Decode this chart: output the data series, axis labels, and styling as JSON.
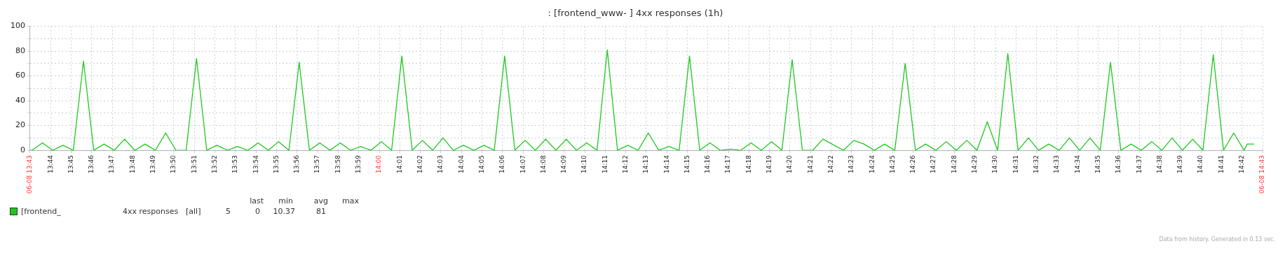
{
  "chart_data": {
    "type": "line",
    "title": ": [frontend_www- ] 4xx responses (1h)",
    "series": [
      {
        "name": "[frontend_",
        "color": "#1ec81e",
        "x": [
          13.7167,
          13.7183,
          13.7267,
          13.735,
          13.7433,
          13.7517,
          13.76,
          13.7683,
          13.7767,
          13.785,
          13.7933,
          13.8017,
          13.81,
          13.8183,
          13.8267,
          13.835,
          13.8433,
          13.8517,
          13.86,
          13.8683,
          13.8767,
          13.885,
          13.8933,
          13.9017,
          13.91,
          13.9183,
          13.9267,
          13.935,
          13.9433,
          13.9517,
          13.96,
          13.9683,
          13.9767,
          13.985,
          13.9933,
          14.0017,
          14.01,
          14.0183,
          14.0267,
          14.035,
          14.0433,
          14.0517,
          14.06,
          14.0683,
          14.0767,
          14.085,
          14.0933,
          14.1017,
          14.11,
          14.1183,
          14.1267,
          14.135,
          14.1433,
          14.1517,
          14.16,
          14.1683,
          14.1767,
          14.185,
          14.1933,
          14.2017,
          14.21,
          14.2183,
          14.2267,
          14.235,
          14.2433,
          14.2517,
          14.26,
          14.2683,
          14.2767,
          14.285,
          14.2933,
          14.3017,
          14.31,
          14.3183,
          14.3267,
          14.335,
          14.3433,
          14.3517,
          14.36,
          14.3767,
          14.385,
          14.3933,
          14.4017,
          14.41,
          14.4183,
          14.4267,
          14.435,
          14.4433,
          14.4517,
          14.46,
          14.4683,
          14.4767,
          14.485,
          14.4933,
          14.5017,
          14.51,
          14.5183,
          14.5267,
          14.535,
          14.5433,
          14.5517,
          14.56,
          14.5683,
          14.5767,
          14.585,
          14.5933,
          14.6017,
          14.61,
          14.6183,
          14.6267,
          14.635,
          14.6433,
          14.6517,
          14.66,
          14.6683,
          14.6767,
          14.685,
          14.6933,
          14.7017,
          14.7042,
          14.71
        ],
        "values": [
          0,
          0,
          6,
          0,
          4,
          0,
          72,
          0,
          5,
          0,
          9,
          0,
          5,
          0,
          14,
          0,
          0,
          74,
          0,
          4,
          0,
          3,
          0,
          6,
          0,
          7,
          0,
          71,
          0,
          6,
          0,
          6,
          0,
          3,
          0,
          7,
          0,
          76,
          0,
          8,
          0,
          10,
          0,
          4,
          0,
          4,
          0,
          76,
          0,
          8,
          0,
          9,
          0,
          9,
          0,
          6,
          0,
          81,
          0,
          4,
          0,
          14,
          0,
          3,
          0,
          76,
          0,
          6,
          0,
          1,
          0,
          6,
          0,
          7,
          0,
          73,
          0,
          0,
          9,
          0,
          8,
          5,
          0,
          5,
          0,
          70,
          0,
          5,
          0,
          7,
          0,
          8,
          0,
          23,
          0,
          78,
          0,
          10,
          0,
          5,
          0,
          10,
          0,
          10,
          0,
          71,
          0,
          5,
          0,
          7,
          0,
          10,
          0,
          9,
          0,
          77,
          0,
          14,
          0,
          5,
          5
        ]
      }
    ],
    "xlim": [
      13.7167,
      14.7167
    ],
    "xticks": [
      {
        "value": 13.7167,
        "label": "06-08 13:43"
      },
      {
        "value": 13.7333,
        "label": "13:44"
      },
      {
        "value": 13.75,
        "label": "13:45"
      },
      {
        "value": 13.7667,
        "label": "13:46"
      },
      {
        "value": 13.7833,
        "label": "13:47"
      },
      {
        "value": 13.8,
        "label": "13:48"
      },
      {
        "value": 13.8167,
        "label": "13:49"
      },
      {
        "value": 13.8333,
        "label": "13:50"
      },
      {
        "value": 13.85,
        "label": "13:51"
      },
      {
        "value": 13.8667,
        "label": "13:52"
      },
      {
        "value": 13.8833,
        "label": "13:53"
      },
      {
        "value": 13.9,
        "label": "13:54"
      },
      {
        "value": 13.9167,
        "label": "13:55"
      },
      {
        "value": 13.9333,
        "label": "13:56"
      },
      {
        "value": 13.95,
        "label": "13:57"
      },
      {
        "value": 13.9667,
        "label": "13:58"
      },
      {
        "value": 13.9833,
        "label": "13:59"
      },
      {
        "value": 14,
        "label": "14:00"
      },
      {
        "value": 14.0167,
        "label": "14:01"
      },
      {
        "value": 14.0333,
        "label": "14:02"
      },
      {
        "value": 14.05,
        "label": "14:03"
      },
      {
        "value": 14.0667,
        "label": "14:04"
      },
      {
        "value": 14.0833,
        "label": "14:05"
      },
      {
        "value": 14.1,
        "label": "14:06"
      },
      {
        "value": 14.1167,
        "label": "14:07"
      },
      {
        "value": 14.1333,
        "label": "14:08"
      },
      {
        "value": 14.15,
        "label": "14:09"
      },
      {
        "value": 14.1667,
        "label": "14:10"
      },
      {
        "value": 14.1833,
        "label": "14:11"
      },
      {
        "value": 14.2,
        "label": "14:12"
      },
      {
        "value": 14.2167,
        "label": "14:13"
      },
      {
        "value": 14.2333,
        "label": "14:14"
      },
      {
        "value": 14.25,
        "label": "14:15"
      },
      {
        "value": 14.2667,
        "label": "14:16"
      },
      {
        "value": 14.2833,
        "label": "14:17"
      },
      {
        "value": 14.3,
        "label": "14:18"
      },
      {
        "value": 14.3167,
        "label": "14:19"
      },
      {
        "value": 14.3333,
        "label": "14:20"
      },
      {
        "value": 14.35,
        "label": "14:21"
      },
      {
        "value": 14.3667,
        "label": "14:22"
      },
      {
        "value": 14.3833,
        "label": "14:23"
      },
      {
        "value": 14.4,
        "label": "14:24"
      },
      {
        "value": 14.4167,
        "label": "14:25"
      },
      {
        "value": 14.4333,
        "label": "14:26"
      },
      {
        "value": 14.45,
        "label": "14:27"
      },
      {
        "value": 14.4667,
        "label": "14:28"
      },
      {
        "value": 14.4833,
        "label": "14:29"
      },
      {
        "value": 14.5,
        "label": "14:30"
      },
      {
        "value": 14.5167,
        "label": "14:31"
      },
      {
        "value": 14.5333,
        "label": "14:32"
      },
      {
        "value": 14.55,
        "label": "14:33"
      },
      {
        "value": 14.5667,
        "label": "14:34"
      },
      {
        "value": 14.5833,
        "label": "14:35"
      },
      {
        "value": 14.6,
        "label": "14:36"
      },
      {
        "value": 14.6167,
        "label": "14:37"
      },
      {
        "value": 14.6333,
        "label": "14:38"
      },
      {
        "value": 14.65,
        "label": "14:39"
      },
      {
        "value": 14.6667,
        "label": "14:40"
      },
      {
        "value": 14.6833,
        "label": "14:41"
      },
      {
        "value": 14.7,
        "label": "14:42"
      },
      {
        "value": 14.7167,
        "label": "06-08 14:43"
      }
    ],
    "ylim": [
      0,
      100
    ],
    "yticks": [
      0,
      {
        "value": 10,
        "label": null
      },
      20,
      {
        "value": 30,
        "label": null
      },
      40,
      {
        "value": 50,
        "label": null
      },
      60,
      {
        "value": 70,
        "label": null
      },
      80,
      {
        "value": 90,
        "label": null
      },
      100
    ],
    "grid": true,
    "legend": "bottom",
    "marker": "none",
    "line_style": "solid",
    "annotations": [
      "4xx responses",
      "[all]",
      "last",
      "min",
      "avg",
      "max",
      "5",
      "0",
      "10.37",
      "81",
      "Data from history. Generated in 0.13 sec."
    ]
  }
}
